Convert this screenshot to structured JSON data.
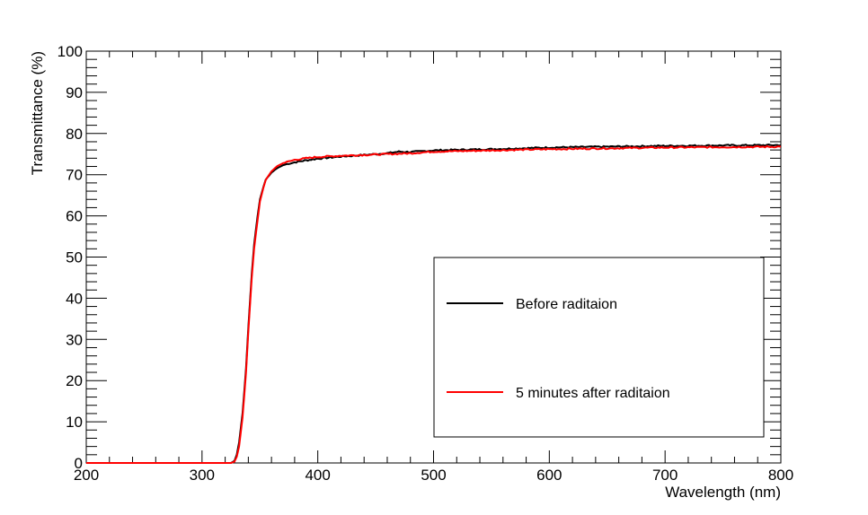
{
  "chart_data": {
    "type": "line",
    "title": "",
    "xlabel": "Wavelength (nm)",
    "ylabel": "Transmittance (%)",
    "xlim": [
      200,
      800
    ],
    "ylim": [
      0,
      100
    ],
    "x_ticks": [
      200,
      300,
      400,
      500,
      600,
      700,
      800
    ],
    "x_tick_labels": [
      "200",
      "300",
      "400",
      "500",
      "600",
      "700",
      "800"
    ],
    "y_ticks": [
      0,
      10,
      20,
      30,
      40,
      50,
      60,
      70,
      80,
      90,
      100
    ],
    "y_tick_labels": [
      "0",
      "10",
      "20",
      "30",
      "40",
      "50",
      "60",
      "70",
      "80",
      "90",
      "100"
    ],
    "grid": false,
    "legend_position": "bottom-right",
    "series": [
      {
        "name": "Before raditaion",
        "color": "#000000",
        "x": [
          200,
          325,
          328,
          330,
          332,
          335,
          338,
          340,
          343,
          345,
          348,
          350,
          353,
          355,
          358,
          360,
          363,
          365,
          368,
          370,
          375,
          380,
          390,
          400,
          420,
          440,
          460,
          470,
          480,
          500,
          550,
          600,
          650,
          700,
          750,
          800
        ],
        "y": [
          0,
          0,
          0.5,
          2,
          5,
          12,
          23,
          33,
          46,
          53,
          60,
          64,
          67,
          68.8,
          69.8,
          70.5,
          71.2,
          71.6,
          72,
          72.3,
          72.7,
          73,
          73.5,
          73.9,
          74.4,
          74.8,
          75.2,
          75.6,
          75.5,
          75.9,
          76.2,
          76.6,
          76.8,
          77,
          77.1,
          77.2
        ]
      },
      {
        "name": "5 minutes after raditaion",
        "color": "#ff0000",
        "x": [
          200,
          325,
          328,
          330,
          332,
          335,
          338,
          340,
          343,
          345,
          348,
          350,
          353,
          355,
          358,
          360,
          363,
          365,
          368,
          370,
          375,
          380,
          390,
          400,
          420,
          440,
          460,
          470,
          480,
          500,
          550,
          600,
          650,
          700,
          750,
          800
        ],
        "y": [
          0,
          0,
          0.3,
          1.5,
          4,
          11,
          22,
          32,
          45,
          52,
          59,
          63.5,
          66.8,
          68.7,
          70,
          70.8,
          71.6,
          72.1,
          72.5,
          72.8,
          73.2,
          73.6,
          74,
          74.3,
          74.6,
          74.8,
          75,
          75.1,
          75.2,
          75.6,
          75.9,
          76.2,
          76.4,
          76.6,
          76.7,
          76.8
        ]
      }
    ]
  }
}
